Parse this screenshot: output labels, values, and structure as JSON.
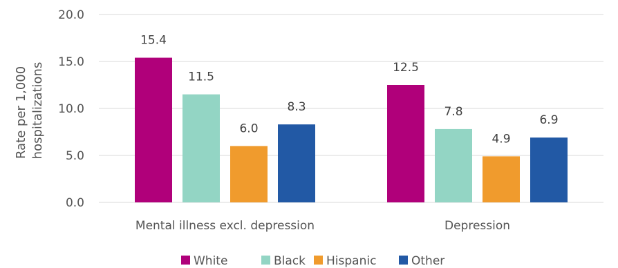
{
  "chart_data": {
    "type": "bar",
    "title": "",
    "ylabel_lines": [
      "Rate per 1,000",
      "hospitalizations"
    ],
    "xlabel": "",
    "categories": [
      "Mental illness excl. depression",
      "Depression"
    ],
    "series": [
      {
        "name": "White",
        "color": "#b0007a",
        "values": [
          15.4,
          12.5
        ]
      },
      {
        "name": "Black",
        "color": "#93d5c4",
        "values": [
          11.5,
          7.8
        ]
      },
      {
        "name": "Hispanic",
        "color": "#f09b2d",
        "values": [
          6.0,
          4.9
        ]
      },
      {
        "name": "Other",
        "color": "#2259a5",
        "values": [
          8.3,
          6.9
        ]
      }
    ],
    "ylim": [
      0,
      20
    ],
    "yticks": [
      "0.0",
      "5.0",
      "10.0",
      "15.0",
      "20.0"
    ],
    "value_labels": [
      [
        "15.4",
        "12.5"
      ],
      [
        "11.5",
        "7.8"
      ],
      [
        "6.0",
        "4.9"
      ],
      [
        "8.3",
        "6.9"
      ]
    ],
    "grid": true,
    "legend_position": "bottom"
  }
}
